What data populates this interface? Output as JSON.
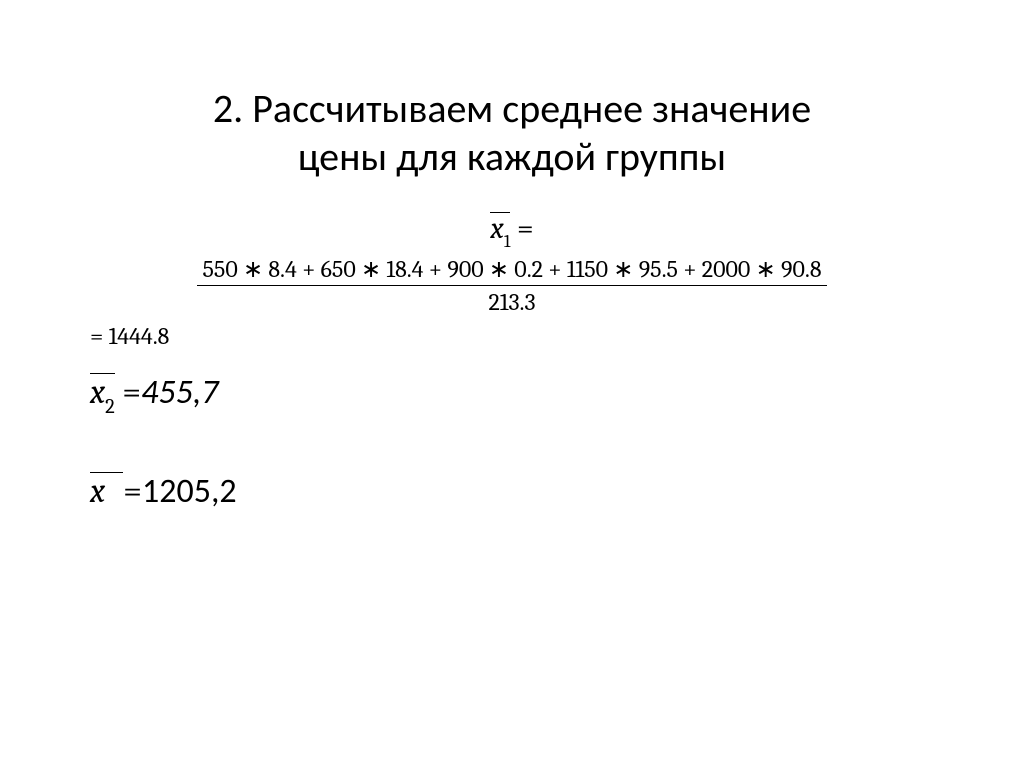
{
  "title_line1": "2. Рассчитываем среднее значение",
  "title_line2": "цены для каждой группы",
  "eq1": {
    "var_x": "x",
    "sub": "1",
    "equals": " ="
  },
  "fraction": {
    "numerator": "550 ∗ 8.4 + 650 ∗ 18.4 + 900 ∗ 0.2 + 1150 ∗ 95.5 + 2000 ∗ 90.8",
    "denominator": "213.3"
  },
  "result1": "= 1444.8",
  "eq2": {
    "var_x": "x",
    "sub": "2",
    "equals": " =",
    "value": "455,7"
  },
  "eq3": {
    "var_x": "x",
    "equals": "=",
    "value": "1205,2"
  }
}
